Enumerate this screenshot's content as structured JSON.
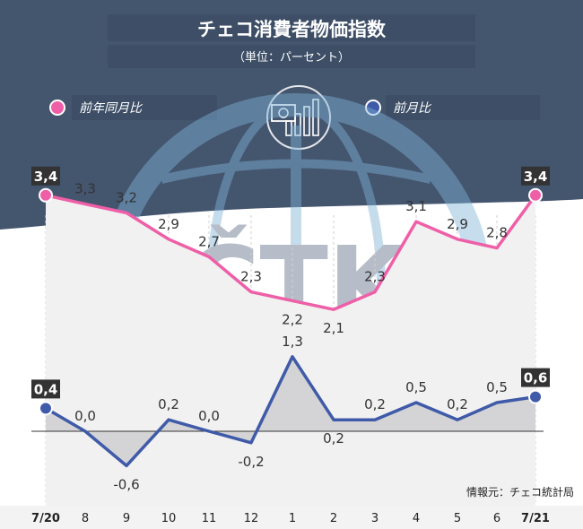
{
  "header": {
    "title": "チェコ消費者物価指数",
    "unit": "（単位：パーセント）"
  },
  "legend": [
    {
      "label": "前年同月比",
      "color": "#ef5fa7"
    },
    {
      "label": "前月比",
      "color": "#3f5aa8"
    }
  ],
  "source": "情報元：チェコ統計局",
  "watermark": {
    "text": "ČTK",
    "icon": "globe-icon"
  },
  "header_icon": "currency-chart-icon",
  "colors": {
    "header_bg": "#44556e",
    "yoy": "#ef5fa7",
    "mom": "#3f5aa8"
  },
  "chart_data": {
    "type": "line",
    "categories": [
      "7/20",
      "8",
      "9",
      "10",
      "11",
      "12",
      "1",
      "2",
      "3",
      "4",
      "5",
      "6",
      "7/21"
    ],
    "series": [
      {
        "name": "前年同月比",
        "values": [
          3.4,
          3.3,
          3.2,
          2.9,
          2.7,
          2.3,
          2.2,
          2.1,
          2.3,
          3.1,
          2.9,
          2.8,
          3.4
        ],
        "labels": [
          "3,4",
          "3,3",
          "3,2",
          "2,9",
          "2,7",
          "2,3",
          "2,2",
          "2,1",
          "2,3",
          "3,1",
          "2,9",
          "2,8",
          "3,4"
        ]
      },
      {
        "name": "前月比",
        "values": [
          0.4,
          0.0,
          -0.6,
          0.2,
          0.0,
          -0.2,
          1.3,
          0.2,
          0.2,
          0.5,
          0.2,
          0.5,
          0.6
        ],
        "labels": [
          "0,4",
          "0,0",
          "-0,6",
          "0,2",
          "0,0",
          "-0,2",
          "1,3",
          "0,2",
          "0,2",
          "0,5",
          "0,2",
          "0,5",
          "0,6"
        ]
      }
    ],
    "grid": "vertical",
    "legend_position": "top"
  }
}
